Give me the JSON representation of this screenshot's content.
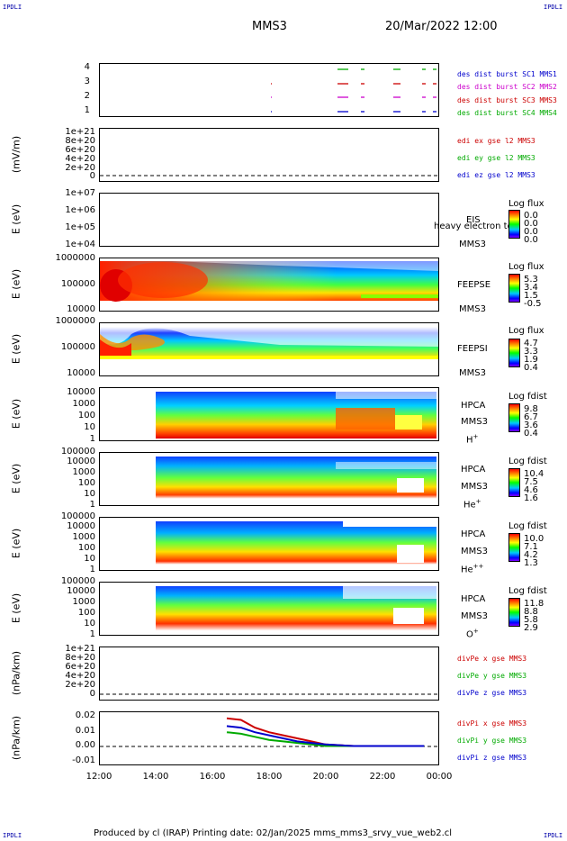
{
  "corners": {
    "tl": "IPDLI",
    "tr": "IPDLI",
    "bl": "IPDLI",
    "br": "IPDLI"
  },
  "header": {
    "spacecraft": "MMS3",
    "date": "20/Mar/2022 12:00"
  },
  "colors": {
    "c1": "#0000cc",
    "c2": "#cc00cc",
    "c3": "#cc0000",
    "c4": "#00aa00"
  },
  "panels": {
    "p1": {
      "ticks": [
        "4",
        "3",
        "2",
        "1"
      ],
      "legend": [
        "des dist burst SC1 MMS1",
        "des dist burst SC2 MMS2",
        "des dist burst SC3 MMS3",
        "des dist burst SC4 MMS4"
      ]
    },
    "p2": {
      "ylabel": "(mV/m)",
      "ticks": [
        "1e+21",
        "8e+20",
        "6e+20",
        "4e+20",
        "2e+20",
        "0"
      ],
      "legend": [
        "edi ex gse l2 MMS3",
        "edi ey gse l2 MMS3",
        "edi ez gse l2 MMS3"
      ]
    },
    "p3": {
      "ylabel": "E (eV)",
      "ticks": [
        "1e+07",
        "1e+06",
        "1e+05",
        "1e+04"
      ],
      "inst": "EIS",
      "sc": "MMS3",
      "overlay": "heavy electron to",
      "cbtitle": "Log flux",
      "cbvals": [
        "0.0",
        "0.0",
        "0.0",
        "0.0"
      ]
    },
    "p4": {
      "ylabel": "E (eV)",
      "ticks": [
        "1000000",
        "100000",
        "10000"
      ],
      "inst": "FEEPSE",
      "sc": "MMS3",
      "cbtitle": "Log flux",
      "cbvals": [
        "5.3",
        "3.4",
        "1.5",
        "-0.5"
      ]
    },
    "p5": {
      "ylabel": "E (eV)",
      "ticks": [
        "1000000",
        "100000",
        "10000"
      ],
      "inst": "FEEPSI",
      "sc": "MMS3",
      "cbtitle": "Log flux",
      "cbvals": [
        "4.7",
        "3.3",
        "1.9",
        "0.4"
      ]
    },
    "p6": {
      "ylabel": "E (eV)",
      "ticks": [
        "10000",
        "1000",
        "100",
        "10",
        "1"
      ],
      "inst": "HPCA",
      "sc": "MMS3",
      "species": "H",
      "sup": "+",
      "cbtitle": "Log fdist",
      "cbvals": [
        "9.8",
        "6.7",
        "3.6",
        "0.4"
      ]
    },
    "p7": {
      "ylabel": "E (eV)",
      "ticks": [
        "100000",
        "10000",
        "1000",
        "100",
        "10",
        "1"
      ],
      "inst": "HPCA",
      "sc": "MMS3",
      "species": "He",
      "sup": "+",
      "cbtitle": "Log fdist",
      "cbvals": [
        "10.4",
        "7.5",
        "4.6",
        "1.6"
      ]
    },
    "p8": {
      "ylabel": "E (eV)",
      "ticks": [
        "100000",
        "10000",
        "1000",
        "100",
        "10",
        "1"
      ],
      "inst": "HPCA",
      "sc": "MMS3",
      "species": "He",
      "sup": "++",
      "cbtitle": "Log fdist",
      "cbvals": [
        "10.0",
        "7.1",
        "4.2",
        "1.3"
      ]
    },
    "p9": {
      "ylabel": "E (eV)",
      "ticks": [
        "100000",
        "10000",
        "1000",
        "100",
        "10",
        "1"
      ],
      "inst": "HPCA",
      "sc": "MMS3",
      "species": "O",
      "sup": "+",
      "cbtitle": "Log fdist",
      "cbvals": [
        "11.8",
        "8.8",
        "5.8",
        "2.9"
      ]
    },
    "p10": {
      "ylabel": "(nPa/km)",
      "ticks": [
        "1e+21",
        "8e+20",
        "6e+20",
        "4e+20",
        "2e+20",
        "0"
      ],
      "legend": [
        "divPe x gse MMS3",
        "divPe y gse MMS3",
        "divPe z gse MMS3"
      ]
    },
    "p11": {
      "ylabel": "(nPa/km)",
      "ticks": [
        "0.02",
        "0.01",
        "0.00",
        "-0.01"
      ],
      "legend": [
        "divPi x gse MMS3",
        "divPi y gse MMS3",
        "divPi z gse MMS3"
      ]
    }
  },
  "xaxis": {
    "ticks": [
      "12:00",
      "14:00",
      "16:00",
      "18:00",
      "20:00",
      "22:00",
      "00:00"
    ]
  },
  "footer": "Produced by cl (IRAP)   Printing date: 02/Jan/2025   mms_mms3_srvy_vue_web2.cl",
  "chart_data": {
    "type": "line",
    "title": "MMS3",
    "xlabel": "",
    "ylabel": "(nPa/km)",
    "x": [
      "16:30",
      "17:00",
      "17:30",
      "18:00",
      "18:30",
      "19:00",
      "19:30",
      "20:00",
      "21:00",
      "22:00",
      "23:30"
    ],
    "series": [
      {
        "name": "divPi x gse MMS3",
        "values": [
          0.018,
          0.017,
          0.012,
          0.009,
          0.007,
          0.005,
          0.003,
          0.001,
          0.0,
          0.0,
          0.0
        ]
      },
      {
        "name": "divPi y gse MMS3",
        "values": [
          0.009,
          0.008,
          0.006,
          0.004,
          0.003,
          0.002,
          0.001,
          0.0,
          0.0,
          0.0,
          0.0
        ]
      },
      {
        "name": "divPi z gse MMS3",
        "values": [
          0.013,
          0.012,
          0.009,
          0.007,
          0.005,
          0.003,
          0.002,
          0.001,
          0.0,
          0.0,
          0.0
        ]
      }
    ],
    "ylim": [
      -0.012,
      0.022
    ]
  }
}
